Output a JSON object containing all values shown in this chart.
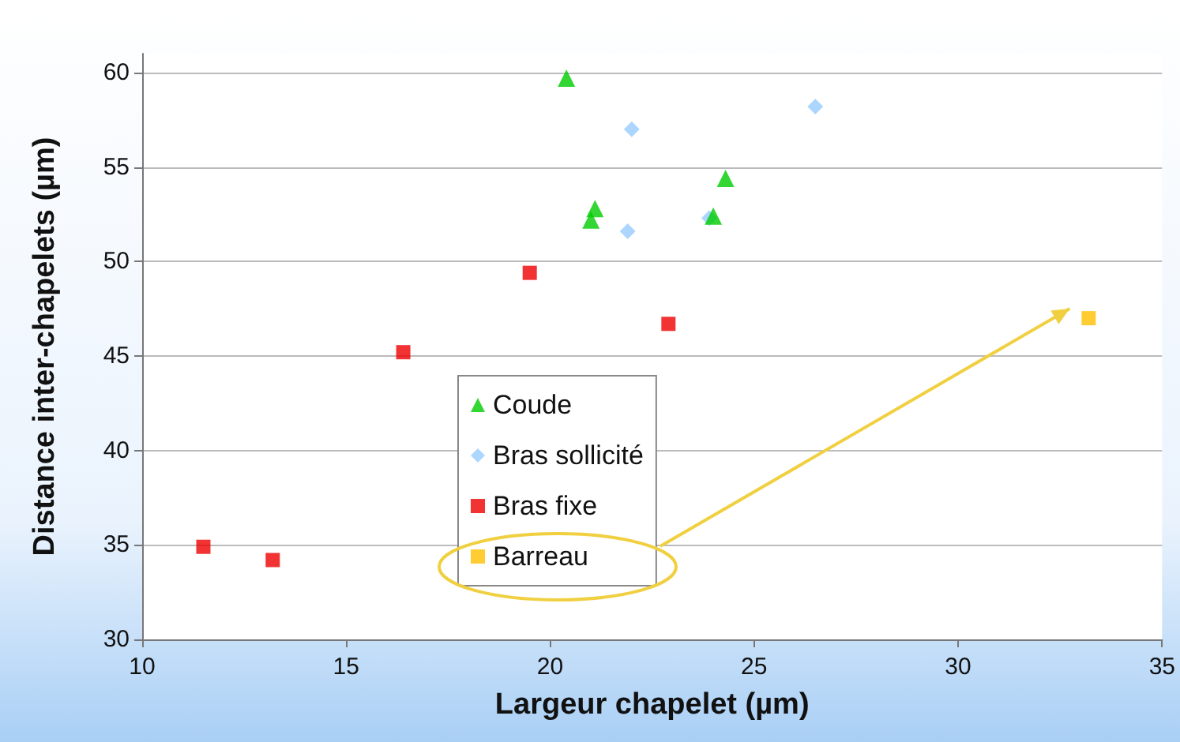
{
  "chart_data": {
    "type": "scatter",
    "xlabel": "Largeur chapelet (µm)",
    "ylabel": "Distance inter-chapelets (µm)",
    "xlim": [
      10,
      35
    ],
    "xticks": [
      10,
      15,
      20,
      25,
      30,
      35
    ],
    "ylim": [
      30,
      61
    ],
    "yticks": [
      30,
      35,
      40,
      45,
      50,
      55,
      60
    ],
    "grid": "y",
    "legend": "bottom left",
    "series": [
      {
        "name": "Coude",
        "color": "#00cc00",
        "marker": "triangle",
        "x": [
          20.4,
          21.1,
          21.0,
          24.0,
          24.3
        ],
        "values": [
          59.7,
          52.8,
          52.2,
          52.4,
          54.4
        ]
      },
      {
        "name": "Bras sollicité",
        "color": "#99ccff",
        "marker": "diamond",
        "x": [
          22.0,
          21.9,
          26.5,
          23.9
        ],
        "values": [
          57.0,
          51.6,
          58.2,
          52.3
        ]
      },
      {
        "name": "Bras fixe",
        "color": "#ee0000",
        "marker": "square",
        "x": [
          11.5,
          13.2,
          16.4,
          19.5,
          22.9
        ],
        "values": [
          34.9,
          34.2,
          45.2,
          49.4,
          46.7
        ]
      },
      {
        "name": "Barreau",
        "color": "#ffc000",
        "marker": "square",
        "x": [
          33.2
        ],
        "values": [
          47.0
        ]
      }
    ]
  }
}
